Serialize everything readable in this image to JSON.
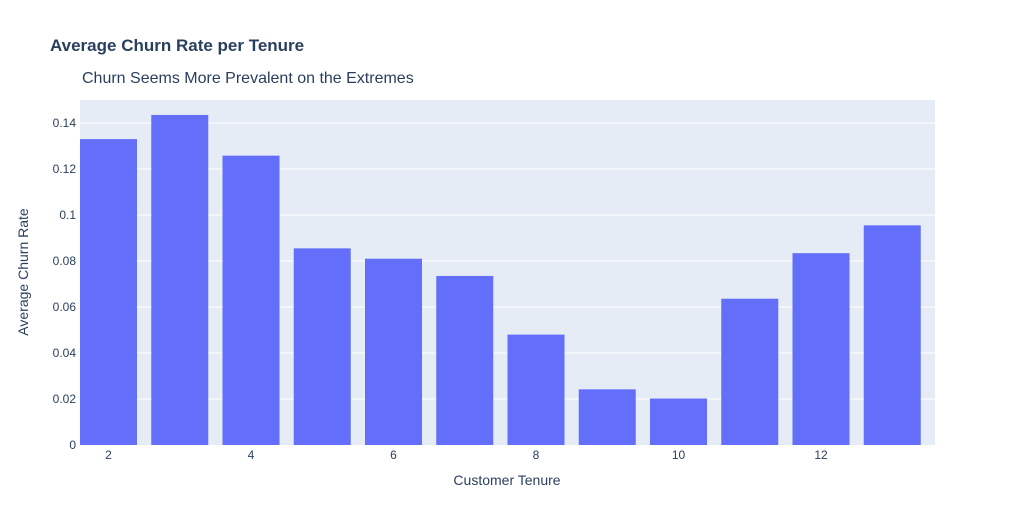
{
  "chart_data": {
    "type": "bar",
    "title": "Average Churn Rate per Tenure",
    "subtitle": "Churn Seems More Prevalent on the Extremes",
    "xlabel": "Customer Tenure",
    "ylabel": "Average Churn Rate",
    "x": [
      2,
      3,
      4,
      5,
      6,
      7,
      8,
      9,
      10,
      11,
      12,
      13
    ],
    "values": [
      0.133,
      0.1435,
      0.1258,
      0.0855,
      0.081,
      0.0735,
      0.048,
      0.0242,
      0.0202,
      0.0636,
      0.0834,
      0.0955
    ],
    "xlim": [
      1.6,
      13.6
    ],
    "ylim": [
      0,
      0.15
    ],
    "x_ticks": [
      2,
      4,
      6,
      8,
      10,
      12
    ],
    "x_tick_labels": [
      "2",
      "4",
      "6",
      "8",
      "10",
      "12"
    ],
    "y_ticks": [
      0,
      0.02,
      0.04,
      0.06,
      0.08,
      0.1,
      0.12,
      0.14
    ],
    "y_tick_labels": [
      "0",
      "0.02",
      "0.04",
      "0.06",
      "0.08",
      "0.1",
      "0.12",
      "0.14"
    ],
    "grid": true,
    "colors": {
      "bar": "#636efa",
      "plot_bg": "#e5ecf6",
      "grid": "#ffffff",
      "text": "#2a3f5f"
    }
  }
}
